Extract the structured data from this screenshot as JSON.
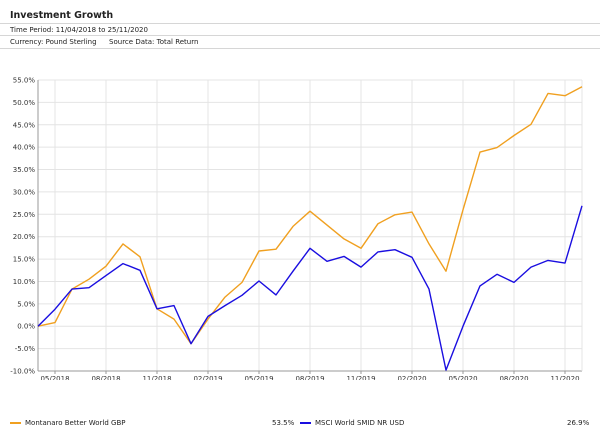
{
  "header": {
    "title": "Investment Growth",
    "period_label": "Time Period:",
    "period_value": "11/04/2018 to 25/11/2020",
    "currency_label": "Currency:",
    "currency_value": "Pound Sterling",
    "source_label": "Source Data:",
    "source_value": "Total Return"
  },
  "colors": {
    "series_0": "#f0a020",
    "series_1": "#1a0ee0",
    "grid": "#e4e4e4",
    "axis": "#999999",
    "text": "#333333"
  },
  "legend": {
    "items": [
      {
        "name": "Montanaro Better World GBP",
        "value": "53.5%"
      },
      {
        "name": "MSCI World SMID NR USD",
        "value": "26.9%"
      }
    ]
  },
  "chart_data": {
    "type": "line",
    "title": "Investment Growth",
    "xlabel": "",
    "ylabel": "",
    "ylim": [
      -10,
      55
    ],
    "y_ticks": [
      -10,
      -5,
      0,
      5,
      10,
      15,
      20,
      25,
      30,
      35,
      40,
      45,
      50,
      55
    ],
    "y_tick_labels": [
      "-10.0%",
      "-5.0%",
      "0.0%",
      "5.0%",
      "10.0%",
      "15.0%",
      "20.0%",
      "25.0%",
      "30.0%",
      "35.0%",
      "40.0%",
      "45.0%",
      "50.0%",
      "55.0%"
    ],
    "x_ticks": [
      {
        "label": "05/2018",
        "index": 1
      },
      {
        "label": "08/2018",
        "index": 4
      },
      {
        "label": "11/2018",
        "index": 7
      },
      {
        "label": "02/2019",
        "index": 10
      },
      {
        "label": "05/2019",
        "index": 13
      },
      {
        "label": "08/2019",
        "index": 16
      },
      {
        "label": "11/2019",
        "index": 19
      },
      {
        "label": "02/2020",
        "index": 22
      },
      {
        "label": "05/2020",
        "index": 25
      },
      {
        "label": "08/2020",
        "index": 28
      },
      {
        "label": "11/2020",
        "index": 31
      }
    ],
    "x": [
      "11/04/2018",
      "04/2018",
      "05/2018",
      "06/2018",
      "07/2018",
      "08/2018",
      "09/2018",
      "10/2018",
      "11/2018",
      "12/2018",
      "01/2019",
      "02/2019",
      "03/2019",
      "04/2019",
      "05/2019",
      "06/2019",
      "07/2019",
      "08/2019",
      "09/2019",
      "10/2019",
      "11/2019",
      "12/2019",
      "01/2020",
      "02/2020",
      "03/2020",
      "04/2020",
      "05/2020",
      "06/2020",
      "07/2020",
      "08/2020",
      "09/2020",
      "10/2020",
      "25/11/2020"
    ],
    "grid": true,
    "legend_position": "bottom",
    "series": [
      {
        "name": "Montanaro Better World GBP",
        "values": [
          0.0,
          0.8,
          8.3,
          10.5,
          13.4,
          18.4,
          15.5,
          3.9,
          1.6,
          -3.9,
          1.6,
          6.5,
          9.8,
          16.8,
          17.2,
          22.3,
          25.7,
          22.6,
          19.5,
          17.4,
          22.9,
          24.9,
          25.5,
          18.4,
          12.3,
          26.0,
          38.9,
          39.9,
          42.6,
          45.1,
          52.0,
          51.5,
          53.5
        ]
      },
      {
        "name": "MSCI World SMID NR USD",
        "values": [
          0.0,
          3.8,
          8.3,
          8.6,
          11.3,
          14.0,
          12.5,
          3.9,
          4.6,
          -3.9,
          2.2,
          4.6,
          6.9,
          10.1,
          7.0,
          12.3,
          17.4,
          14.5,
          15.6,
          13.2,
          16.6,
          17.1,
          15.4,
          8.3,
          -9.8,
          0.0,
          9.0,
          11.6,
          9.8,
          13.2,
          14.7,
          14.1,
          26.9
        ]
      }
    ]
  }
}
